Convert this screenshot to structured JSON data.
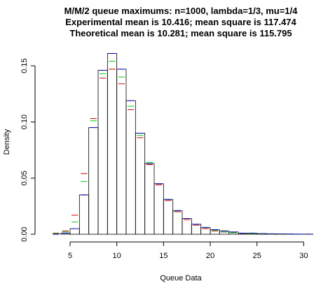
{
  "chart_data": {
    "type": "bar",
    "title_lines": [
      "M/M/2 queue maximums: n=1000, lambda=1/3, mu=1/4",
      "Experimental mean is 10.416; mean square is 117.474",
      "Theoretical mean is 10.281; mean square is 115.795"
    ],
    "xlabel": "Queue Data",
    "ylabel": "Density",
    "xlim": [
      2,
      30.5
    ],
    "ylim": [
      0,
      0.165
    ],
    "x_ticks": [
      5,
      10,
      15,
      20,
      25,
      30
    ],
    "x_tick_labels": [
      "5",
      "10",
      "15",
      "20",
      "25",
      "30"
    ],
    "y_ticks": [
      0.0,
      0.05,
      0.1,
      0.15
    ],
    "y_tick_labels": [
      "0.00",
      "0.05",
      "0.10",
      "0.15"
    ],
    "bin_edges": [
      3,
      4,
      5,
      6,
      7,
      8,
      9,
      10,
      11,
      12,
      13,
      14,
      15,
      16,
      17,
      18,
      19,
      20,
      21,
      22,
      23,
      24,
      25,
      26,
      27,
      28,
      29,
      30,
      31
    ],
    "histogram_density": [
      0.0,
      0.001,
      0.005,
      0.035,
      0.095,
      0.146,
      0.161,
      0.147,
      0.119,
      0.09,
      0.063,
      0.045,
      0.031,
      0.021,
      0.014,
      0.009,
      0.006,
      0.004,
      0.003,
      0.002,
      0.001,
      0.001,
      0.0006,
      0.0004,
      0.0003,
      0.0002,
      0.0001,
      0.0001
    ],
    "series": [
      {
        "color": "#cc0000",
        "values": [
          0.001,
          0.003,
          0.017,
          0.054,
          0.103,
          0.139,
          0.147,
          0.134,
          0.111,
          0.086,
          0.062,
          0.044,
          0.03,
          0.02,
          0.013,
          0.008,
          0.005,
          0.003,
          0.002,
          0.0012,
          0.0007,
          0.0004,
          0.0002,
          0.0001,
          6e-05,
          3e-05,
          2e-05,
          1e-05
        ]
      },
      {
        "color": "#00cc00",
        "values": [
          0.0005,
          0.002,
          0.011,
          0.047,
          0.101,
          0.143,
          0.154,
          0.14,
          0.114,
          0.088,
          0.064,
          0.045,
          0.031,
          0.021,
          0.014,
          0.009,
          0.006,
          0.0035,
          0.002,
          0.0013,
          0.0008,
          0.0005,
          0.0003,
          0.00018,
          0.0001,
          6e-05,
          3e-05,
          2e-05
        ]
      },
      {
        "color": "#0000cc",
        "values": [
          0.0,
          0.001,
          0.005,
          0.035,
          0.095,
          0.146,
          0.161,
          0.147,
          0.119,
          0.09,
          0.063,
          0.045,
          0.031,
          0.021,
          0.014,
          0.009,
          0.006,
          0.004,
          0.003,
          0.002,
          0.001,
          0.001,
          0.0006,
          0.0004,
          0.0003,
          0.0002,
          0.0001,
          0.0001
        ]
      }
    ],
    "grid": false,
    "legend": "none"
  }
}
